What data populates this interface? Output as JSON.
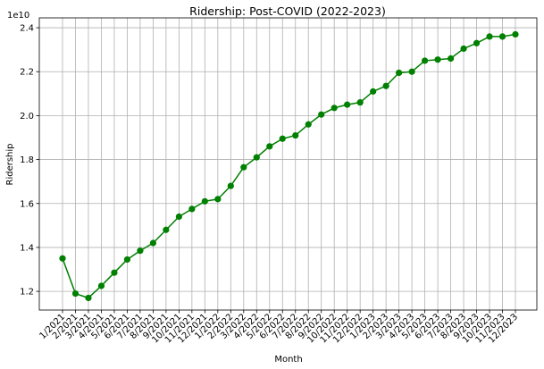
{
  "chart_data": {
    "type": "line",
    "title": "Ridership: Post-COVID (2022-2023)",
    "xlabel": "Month",
    "ylabel": "Ridership",
    "y_multiplier_label": "1e10",
    "y_scale_exponent": 10,
    "ylim": [
      1.115,
      2.445
    ],
    "y_ticks": [
      1.2,
      1.4,
      1.6,
      1.8,
      2.0,
      2.2,
      2.4
    ],
    "y_tick_labels": [
      "1.2",
      "1.4",
      "1.6",
      "1.8",
      "2.0",
      "2.2",
      "2.4"
    ],
    "grid": true,
    "color": "#008000",
    "marker": "circle",
    "categories": [
      "1/2021",
      "2/2021",
      "3/2021",
      "4/2021",
      "5/2021",
      "6/2021",
      "7/2021",
      "8/2021",
      "9/2021",
      "10/2021",
      "11/2021",
      "12/2021",
      "1/2022",
      "2/2022",
      "3/2022",
      "4/2022",
      "5/2022",
      "6/2022",
      "7/2022",
      "8/2022",
      "9/2022",
      "10/2022",
      "11/2022",
      "12/2022",
      "1/2023",
      "2/2023",
      "3/2023",
      "4/2023",
      "5/2023",
      "6/2023",
      "7/2023",
      "8/2023",
      "9/2023",
      "10/2023",
      "11/2023",
      "12/2023"
    ],
    "series": [
      {
        "values": [
          1.35,
          1.19,
          1.17,
          1.225,
          1.285,
          1.345,
          1.385,
          1.42,
          1.48,
          1.54,
          1.575,
          1.61,
          1.62,
          1.68,
          1.765,
          1.81,
          1.86,
          1.895,
          1.91,
          1.96,
          2.005,
          2.035,
          2.05,
          2.06,
          2.11,
          2.135,
          2.195,
          2.2,
          2.25,
          2.255,
          2.26,
          2.305,
          2.33,
          2.36,
          2.36,
          2.37
        ]
      }
    ]
  }
}
